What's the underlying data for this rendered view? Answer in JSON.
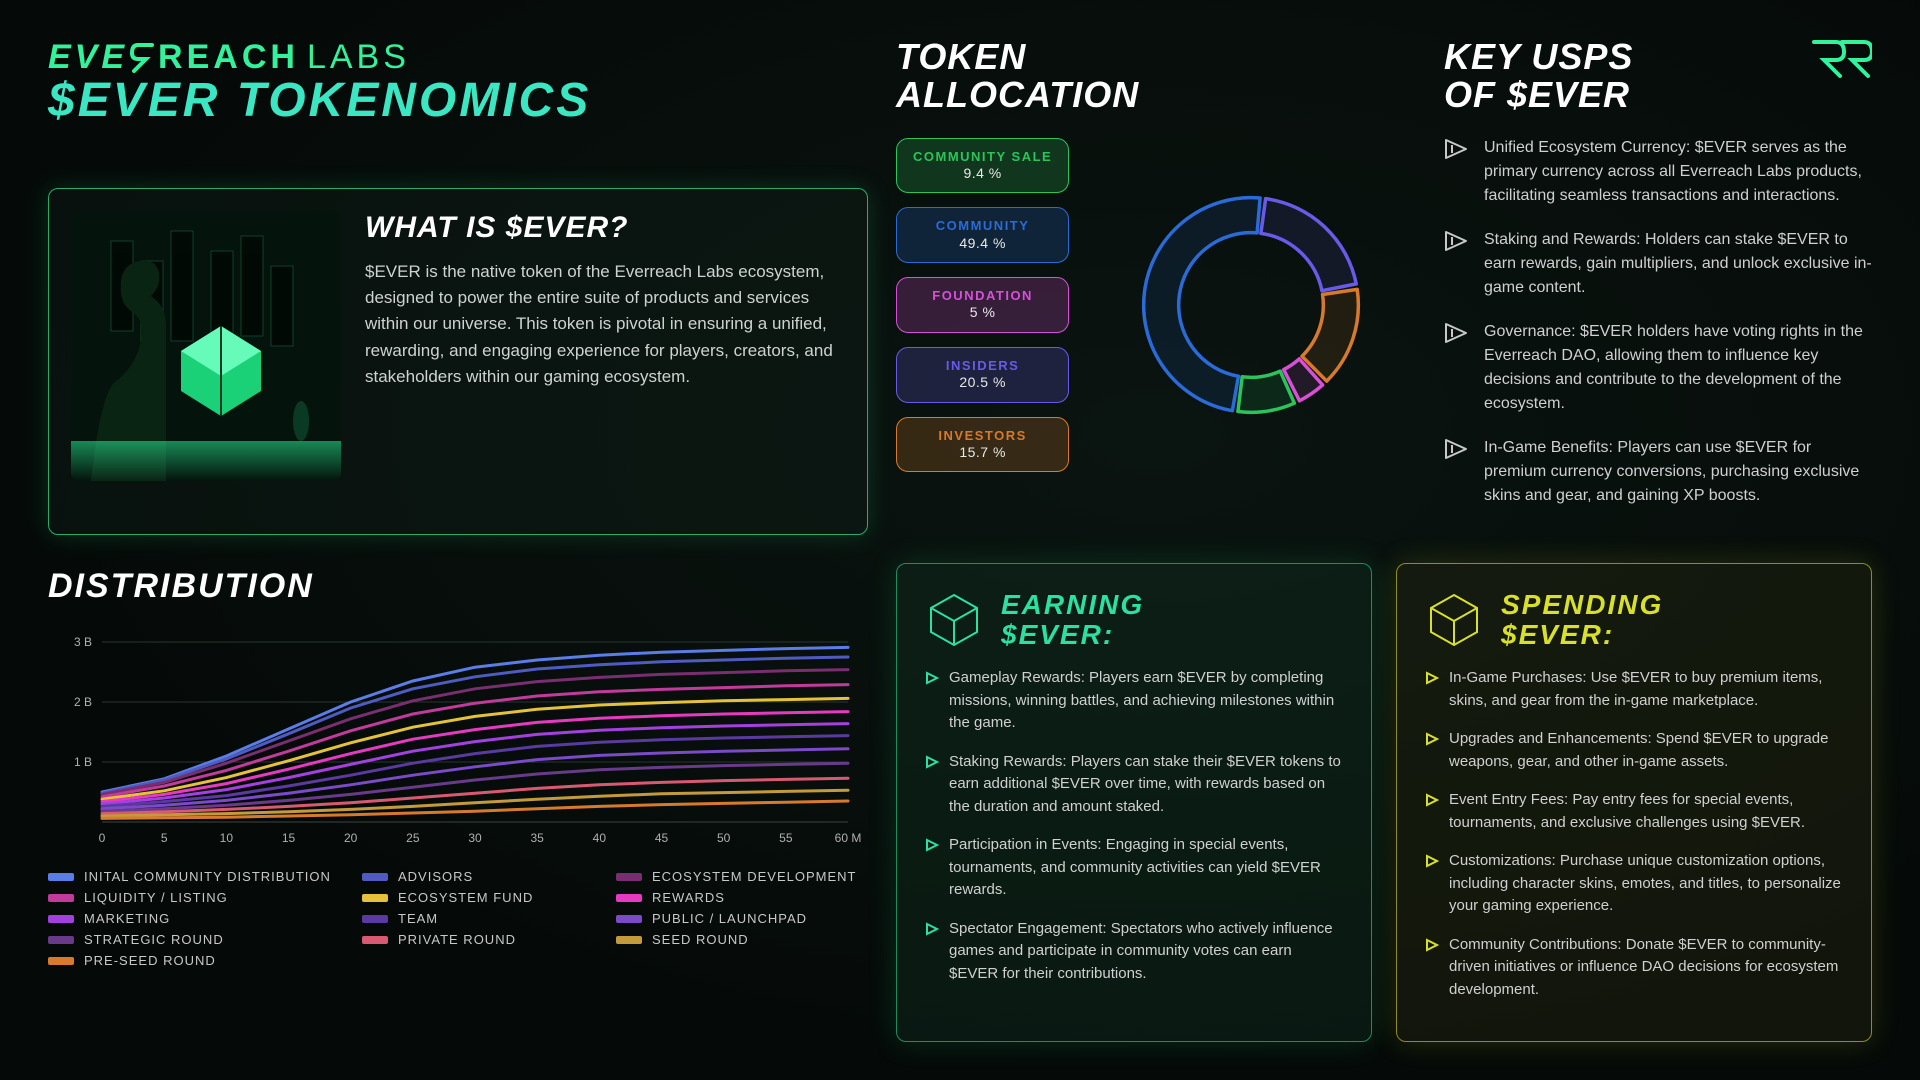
{
  "brand": {
    "ever": "EVE",
    "reach": "REACH",
    "labs": "LABS",
    "sub": "$EVER TOKENOMICS",
    "green": "#32f29c"
  },
  "what": {
    "title": "WHAT IS $EVER?",
    "body": "$EVER is the native token of the Everreach Labs ecosystem, designed to power the entire suite of products and services within our universe. This token is pivotal in ensuring a unified, rewarding, and engaging experience for players, creators, and stakeholders within our gaming ecosystem."
  },
  "alloc": {
    "title": "TOKEN ALLOCATION",
    "items": [
      {
        "label": "COMMUNITY SALE",
        "pct": "9.4 %",
        "color": "#2cc45a",
        "bg": "rgba(44,196,90,0.22)"
      },
      {
        "label": "COMMUNITY",
        "pct": "49.4 %",
        "color": "#2a6bd8",
        "bg": "rgba(42,107,216,0.22)"
      },
      {
        "label": "FOUNDATION",
        "pct": "5 %",
        "color": "#d84fd8",
        "bg": "rgba(216,79,216,0.22)"
      },
      {
        "label": "INSIDERS",
        "pct": "20.5 %",
        "color": "#6a5ae8",
        "bg": "rgba(106,90,232,0.22)"
      },
      {
        "label": "INVESTORS",
        "pct": "15.7 %",
        "color": "#d87a2c",
        "bg": "rgba(216,122,44,0.22)"
      }
    ],
    "donut": {
      "slices": [
        {
          "value": 49.4,
          "color": "#2a6bd8"
        },
        {
          "value": 20.5,
          "color": "#6a5ae8"
        },
        {
          "value": 15.7,
          "color": "#d87a2c"
        },
        {
          "value": 5.0,
          "color": "#d84fd8"
        },
        {
          "value": 9.4,
          "color": "#2cc45a"
        }
      ],
      "start_angle": 100,
      "gap_deg": 3,
      "inner_r": 68,
      "outer_r": 100,
      "stroke_w": 22
    }
  },
  "usps": {
    "title": "KEY USPS OF $EVER",
    "items": [
      "Unified Ecosystem Currency: $EVER serves as the primary currency across all Everreach Labs products, facilitating seamless transactions and interactions.",
      "Staking and Rewards: Holders can stake $EVER to earn rewards, gain multipliers, and unlock exclusive in-game content.",
      "Governance: $EVER holders have voting rights in the Everreach DAO, allowing them to influence key decisions and contribute to the development of the ecosystem.",
      "In-Game Benefits: Players can use $EVER for premium currency conversions, purchasing exclusive skins and gear, and gaining XP boosts."
    ],
    "tri_color": "#c8c8c8"
  },
  "dist": {
    "title": "DISTRIBUTION",
    "x": {
      "min": 0,
      "max": 60,
      "step": 5,
      "suffix": "M"
    },
    "y": {
      "ticks": [
        "1 B",
        "2 B",
        "3 B"
      ],
      "max": 3.2
    },
    "series": [
      {
        "name": "INITAL COMMUNITY DISTRIBUTION",
        "color": "#5a7de8",
        "top": [
          0.5,
          0.72,
          1.1,
          1.55,
          2.0,
          2.35,
          2.58,
          2.7,
          2.78,
          2.83,
          2.86,
          2.89,
          2.91
        ]
      },
      {
        "name": "ADVISORS",
        "color": "#4f5bc0",
        "top": [
          0.48,
          0.7,
          1.05,
          1.47,
          1.9,
          2.22,
          2.42,
          2.55,
          2.62,
          2.67,
          2.7,
          2.73,
          2.75
        ]
      },
      {
        "name": "ECOSYSTEM DEVELOPMENT",
        "color": "#7a2e72",
        "top": [
          0.46,
          0.66,
          0.98,
          1.35,
          1.72,
          2.02,
          2.22,
          2.34,
          2.41,
          2.46,
          2.49,
          2.52,
          2.54
        ]
      },
      {
        "name": "LIQUIDITY / LISTING",
        "color": "#c23a9c",
        "top": [
          0.42,
          0.6,
          0.86,
          1.18,
          1.52,
          1.8,
          1.98,
          2.1,
          2.17,
          2.21,
          2.24,
          2.27,
          2.29
        ]
      },
      {
        "name": "ECOSYSTEM FUND",
        "color": "#e6c23a",
        "top": [
          0.38,
          0.52,
          0.74,
          1.02,
          1.32,
          1.58,
          1.76,
          1.88,
          1.95,
          1.99,
          2.02,
          2.04,
          2.06
        ]
      },
      {
        "name": "REWARDS",
        "color": "#e63ac2",
        "top": [
          0.34,
          0.46,
          0.64,
          0.88,
          1.14,
          1.38,
          1.54,
          1.66,
          1.73,
          1.77,
          1.8,
          1.82,
          1.84
        ]
      },
      {
        "name": "MARKETING",
        "color": "#a540e0",
        "top": [
          0.3,
          0.4,
          0.54,
          0.74,
          0.96,
          1.18,
          1.34,
          1.46,
          1.53,
          1.57,
          1.6,
          1.62,
          1.64
        ]
      },
      {
        "name": "TEAM",
        "color": "#5a3aa0",
        "top": [
          0.26,
          0.34,
          0.44,
          0.6,
          0.78,
          0.98,
          1.14,
          1.26,
          1.33,
          1.37,
          1.4,
          1.42,
          1.44
        ]
      },
      {
        "name": "PUBLIC / LAUNCHPAD",
        "color": "#7a4ac8",
        "top": [
          0.22,
          0.28,
          0.36,
          0.48,
          0.62,
          0.78,
          0.92,
          1.04,
          1.11,
          1.15,
          1.18,
          1.2,
          1.22
        ]
      },
      {
        "name": "STRATEGIC ROUND",
        "color": "#6a3a8a",
        "top": [
          0.18,
          0.22,
          0.28,
          0.36,
          0.46,
          0.58,
          0.7,
          0.8,
          0.87,
          0.91,
          0.94,
          0.96,
          0.98
        ]
      },
      {
        "name": "PRIVATE ROUND",
        "color": "#d85a72",
        "top": [
          0.14,
          0.17,
          0.21,
          0.26,
          0.32,
          0.4,
          0.48,
          0.56,
          0.62,
          0.66,
          0.69,
          0.71,
          0.73
        ]
      },
      {
        "name": "SEED ROUND",
        "color": "#c49a3a",
        "top": [
          0.1,
          0.12,
          0.14,
          0.17,
          0.21,
          0.26,
          0.32,
          0.38,
          0.43,
          0.47,
          0.49,
          0.51,
          0.53
        ]
      },
      {
        "name": "PRE-SEED ROUND",
        "color": "#d87a2c",
        "top": [
          0.06,
          0.07,
          0.08,
          0.1,
          0.12,
          0.15,
          0.18,
          0.22,
          0.26,
          0.29,
          0.31,
          0.33,
          0.35
        ]
      }
    ],
    "legend_cols": [
      [
        "INITAL COMMUNITY DISTRIBUTION",
        "ADVISORS",
        "ECOSYSTEM DEVELOPMENT",
        "LIQUIDITY / LISTING",
        "ECOSYSTEM FUND"
      ],
      [
        "REWARDS",
        "MARKETING",
        "TEAM",
        "PUBLIC / LAUNCHPAD",
        "STRATEGIC ROUND"
      ],
      [
        "PRIVATE ROUND",
        "SEED ROUND",
        "PRE-SEED ROUND"
      ]
    ]
  },
  "earn": {
    "title": "EARNING $EVER:",
    "color": "#2ce0a0",
    "items": [
      "Gameplay Rewards: Players earn $EVER by completing missions, winning battles, and achieving milestones within the game.",
      "Staking Rewards: Players can stake their $EVER tokens to earn additional $EVER over time, with rewards based on the duration and amount staked.",
      "Participation in Events: Engaging in special events, tournaments, and community activities can yield $EVER rewards.",
      "Spectator Engagement: Spectators who actively influence games and participate in community votes can earn $EVER for their contributions."
    ]
  },
  "spend": {
    "title": "SPENDING $EVER:",
    "color": "#d8e02c",
    "items": [
      "In-Game Purchases: Use $EVER to buy premium items, skins, and gear from the in-game marketplace.",
      "Upgrades and Enhancements: Spend $EVER to upgrade weapons, gear, and other in-game assets.",
      "Event Entry Fees: Pay entry fees for special events, tournaments, and exclusive challenges using $EVER.",
      "Customizations: Purchase unique customization options, including character skins, emotes, and titles, to personalize your gaming experience.",
      "Community Contributions: Donate $EVER to community-driven initiatives or influence DAO decisions for ecosystem development."
    ]
  }
}
